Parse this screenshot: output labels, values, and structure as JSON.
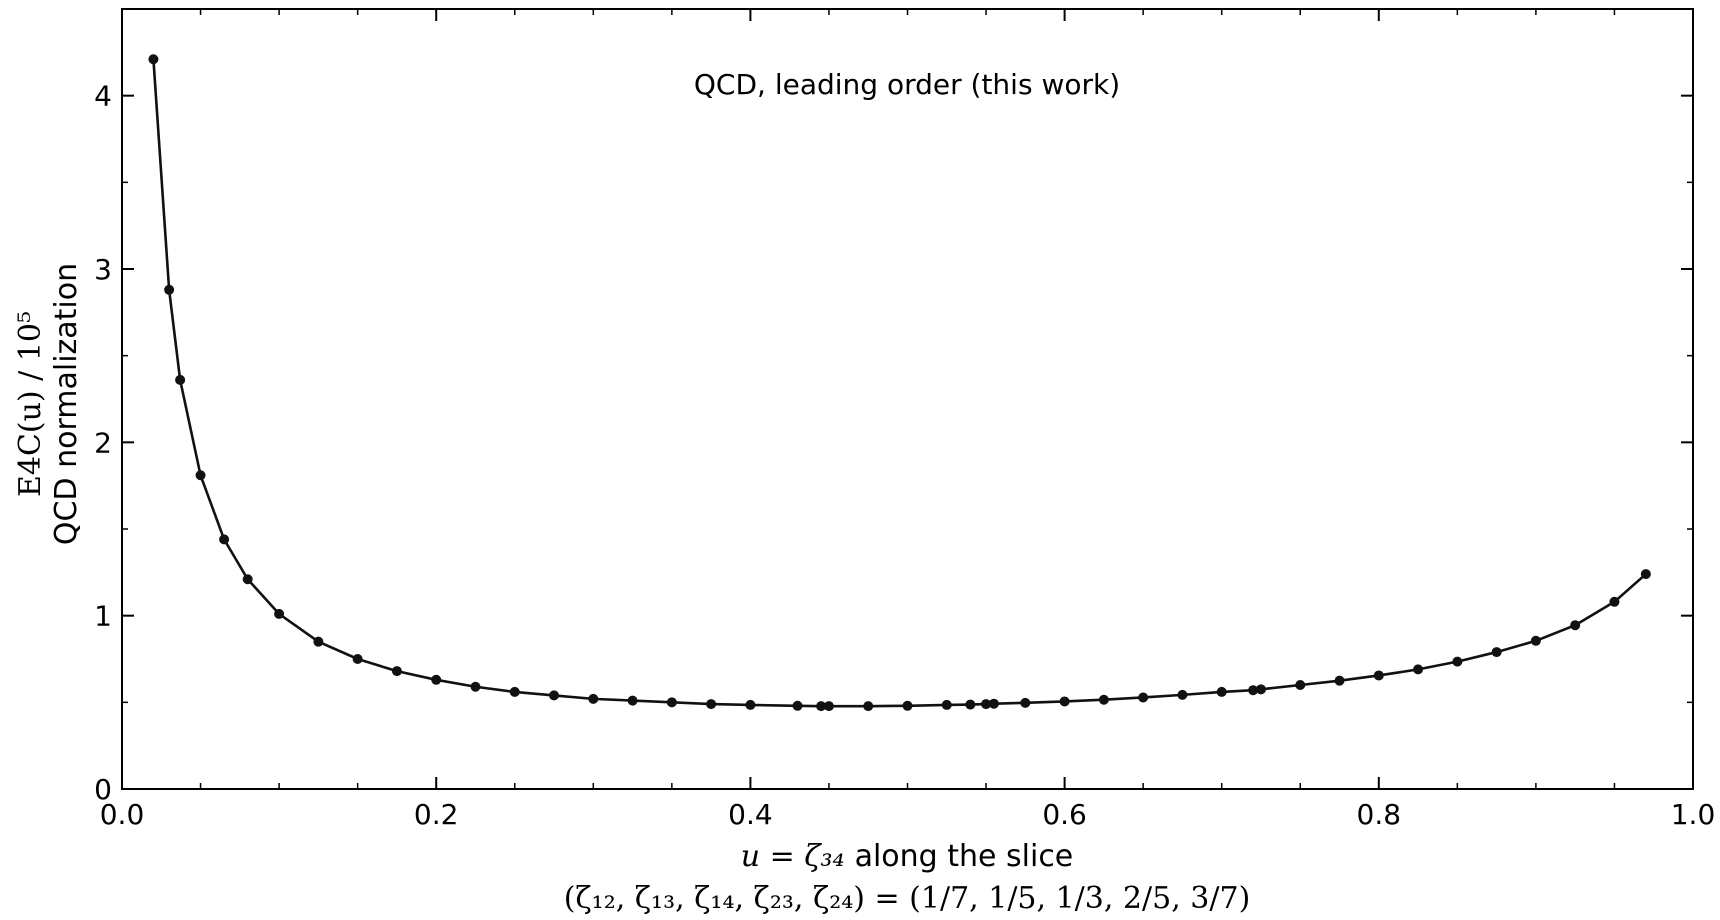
{
  "chart_data": {
    "type": "line",
    "title": "",
    "annotation": "QCD, leading order (this work)",
    "xlabel_math": "u = ζ₃₄",
    "xlabel_text": "along the slice",
    "xlabel_line2": "(ζ₁₂, ζ₁₃, ζ₁₄, ζ₂₃, ζ₂₄) = (1/7,  1/5,  1/3,  2/5,  3/7)",
    "ylabel_line1": "E4C(u) / 10⁵",
    "ylabel_line2": "QCD normalization",
    "xlim": [
      0.0,
      1.0
    ],
    "ylim": [
      0,
      4.5
    ],
    "xticks": [
      0.0,
      0.2,
      0.4,
      0.6,
      0.8,
      1.0
    ],
    "xtick_labels": [
      "0.0",
      "0.2",
      "0.4",
      "0.6",
      "0.8",
      "1.0"
    ],
    "yticks": [
      0,
      1,
      2,
      3,
      4
    ],
    "ytick_labels": [
      "0",
      "1",
      "2",
      "3",
      "4"
    ],
    "x_minor_step": 0.05,
    "y_minor_step": 0.5,
    "grid": false,
    "line_color": "#111111",
    "series": [
      {
        "x": [
          0.02,
          0.03,
          0.037,
          0.05,
          0.065,
          0.08,
          0.1,
          0.125,
          0.15,
          0.175,
          0.2,
          0.225,
          0.25,
          0.275,
          0.3,
          0.325,
          0.35,
          0.375,
          0.4,
          0.43,
          0.445,
          0.45,
          0.475,
          0.5,
          0.525,
          0.54,
          0.55,
          0.555,
          0.575,
          0.6,
          0.625,
          0.65,
          0.675,
          0.7,
          0.72,
          0.725,
          0.75,
          0.775,
          0.8,
          0.825,
          0.85,
          0.875,
          0.9,
          0.925,
          0.95,
          0.97
        ],
        "y": [
          4.21,
          2.88,
          2.36,
          1.81,
          1.44,
          1.21,
          1.01,
          0.85,
          0.75,
          0.68,
          0.63,
          0.59,
          0.56,
          0.54,
          0.52,
          0.51,
          0.5,
          0.49,
          0.485,
          0.48,
          0.478,
          0.478,
          0.478,
          0.48,
          0.485,
          0.487,
          0.49,
          0.492,
          0.497,
          0.505,
          0.515,
          0.528,
          0.543,
          0.56,
          0.57,
          0.575,
          0.6,
          0.625,
          0.655,
          0.69,
          0.735,
          0.79,
          0.855,
          0.945,
          1.08,
          1.24
        ]
      }
    ]
  }
}
